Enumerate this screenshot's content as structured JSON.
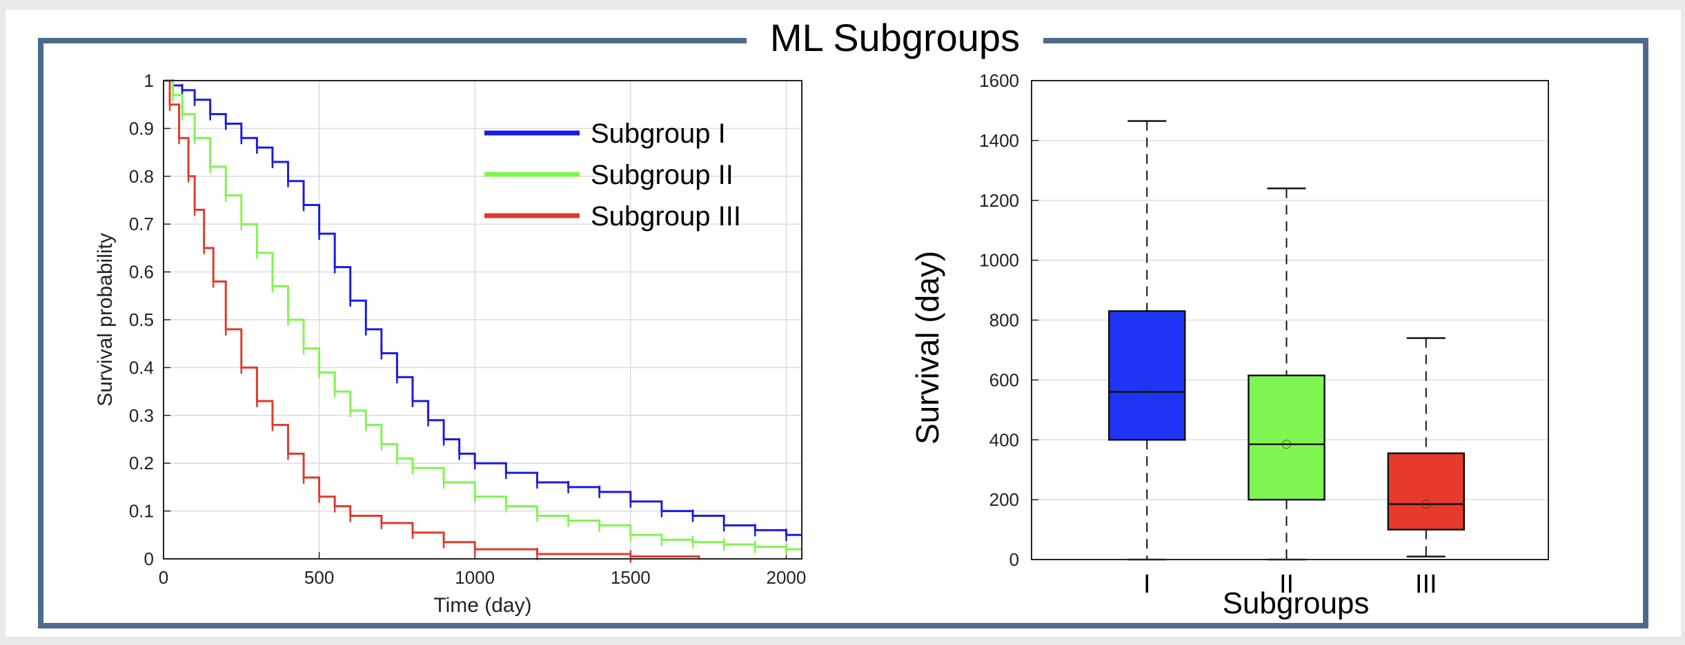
{
  "title": "ML Subgroups",
  "colors": {
    "frame": "#4d6a8c",
    "subgroup_I": "#1a1ae6",
    "subgroup_II": "#80f54e",
    "subgroup_III": "#e03a2c",
    "box_I": "#1f35f5",
    "box_II": "#7ff552",
    "box_III": "#e63a2c"
  },
  "chart_data": [
    {
      "type": "line",
      "subtype": "kaplan-meier",
      "title": "",
      "xlabel": "Time (day)",
      "ylabel": "Survival probability",
      "xlim": [
        0,
        2050
      ],
      "ylim": [
        0,
        1
      ],
      "xticks": [
        "0",
        "500",
        "1000",
        "1500",
        "2000"
      ],
      "yticks": [
        "0",
        "0.1",
        "0.2",
        "0.3",
        "0.4",
        "0.5",
        "0.6",
        "0.7",
        "0.8",
        "0.9",
        "1"
      ],
      "grid": true,
      "legend_position": "top-right",
      "series": [
        {
          "name": "Subgroup I",
          "color": "#1a1ae6",
          "x": [
            0,
            30,
            60,
            100,
            150,
            200,
            250,
            300,
            350,
            400,
            450,
            500,
            550,
            600,
            650,
            700,
            750,
            800,
            850,
            900,
            950,
            1000,
            1100,
            1200,
            1300,
            1400,
            1500,
            1600,
            1700,
            1800,
            1900,
            2000,
            2050
          ],
          "y": [
            1.0,
            0.99,
            0.98,
            0.96,
            0.93,
            0.91,
            0.88,
            0.86,
            0.83,
            0.79,
            0.74,
            0.68,
            0.61,
            0.54,
            0.48,
            0.43,
            0.38,
            0.33,
            0.29,
            0.25,
            0.22,
            0.2,
            0.18,
            0.16,
            0.15,
            0.14,
            0.12,
            0.1,
            0.09,
            0.07,
            0.06,
            0.05,
            0.05
          ]
        },
        {
          "name": "Subgroup II",
          "color": "#80f54e",
          "x": [
            0,
            30,
            60,
            100,
            150,
            200,
            250,
            300,
            350,
            400,
            450,
            500,
            550,
            600,
            650,
            700,
            750,
            800,
            900,
            1000,
            1100,
            1200,
            1300,
            1400,
            1500,
            1600,
            1700,
            1800,
            1900,
            2000,
            2050
          ],
          "y": [
            1.0,
            0.97,
            0.93,
            0.88,
            0.82,
            0.76,
            0.7,
            0.64,
            0.57,
            0.5,
            0.44,
            0.39,
            0.35,
            0.31,
            0.28,
            0.24,
            0.21,
            0.19,
            0.16,
            0.13,
            0.11,
            0.09,
            0.08,
            0.07,
            0.05,
            0.04,
            0.035,
            0.03,
            0.025,
            0.02,
            0.02
          ]
        },
        {
          "name": "Subgroup III",
          "color": "#e03a2c",
          "x": [
            0,
            20,
            50,
            80,
            100,
            130,
            160,
            200,
            250,
            300,
            350,
            400,
            450,
            500,
            550,
            600,
            700,
            800,
            900,
            1000,
            1200,
            1500,
            1720
          ],
          "y": [
            1.0,
            0.95,
            0.88,
            0.8,
            0.73,
            0.65,
            0.58,
            0.48,
            0.4,
            0.33,
            0.28,
            0.22,
            0.17,
            0.13,
            0.11,
            0.09,
            0.075,
            0.055,
            0.035,
            0.02,
            0.01,
            0.005,
            0.0
          ]
        }
      ]
    },
    {
      "type": "box",
      "title": "",
      "xlabel": "Subgroups",
      "ylabel": "Survival (day)",
      "ylim": [
        0,
        1600
      ],
      "yticks": [
        "0",
        "200",
        "400",
        "600",
        "800",
        "1000",
        "1200",
        "1400",
        "1600"
      ],
      "categories": [
        "I",
        "II",
        "III"
      ],
      "grid": true,
      "boxes": [
        {
          "category": "I",
          "min": 0,
          "q1": 400,
          "median": 560,
          "q3": 830,
          "max": 1465,
          "mean": 560,
          "color": "#1f35f5"
        },
        {
          "category": "II",
          "min": 0,
          "q1": 200,
          "median": 385,
          "q3": 615,
          "max": 1240,
          "mean": 385,
          "color": "#7ff552"
        },
        {
          "category": "III",
          "min": 10,
          "q1": 100,
          "median": 185,
          "q3": 355,
          "max": 740,
          "mean": 185,
          "color": "#e63a2c"
        }
      ]
    }
  ]
}
